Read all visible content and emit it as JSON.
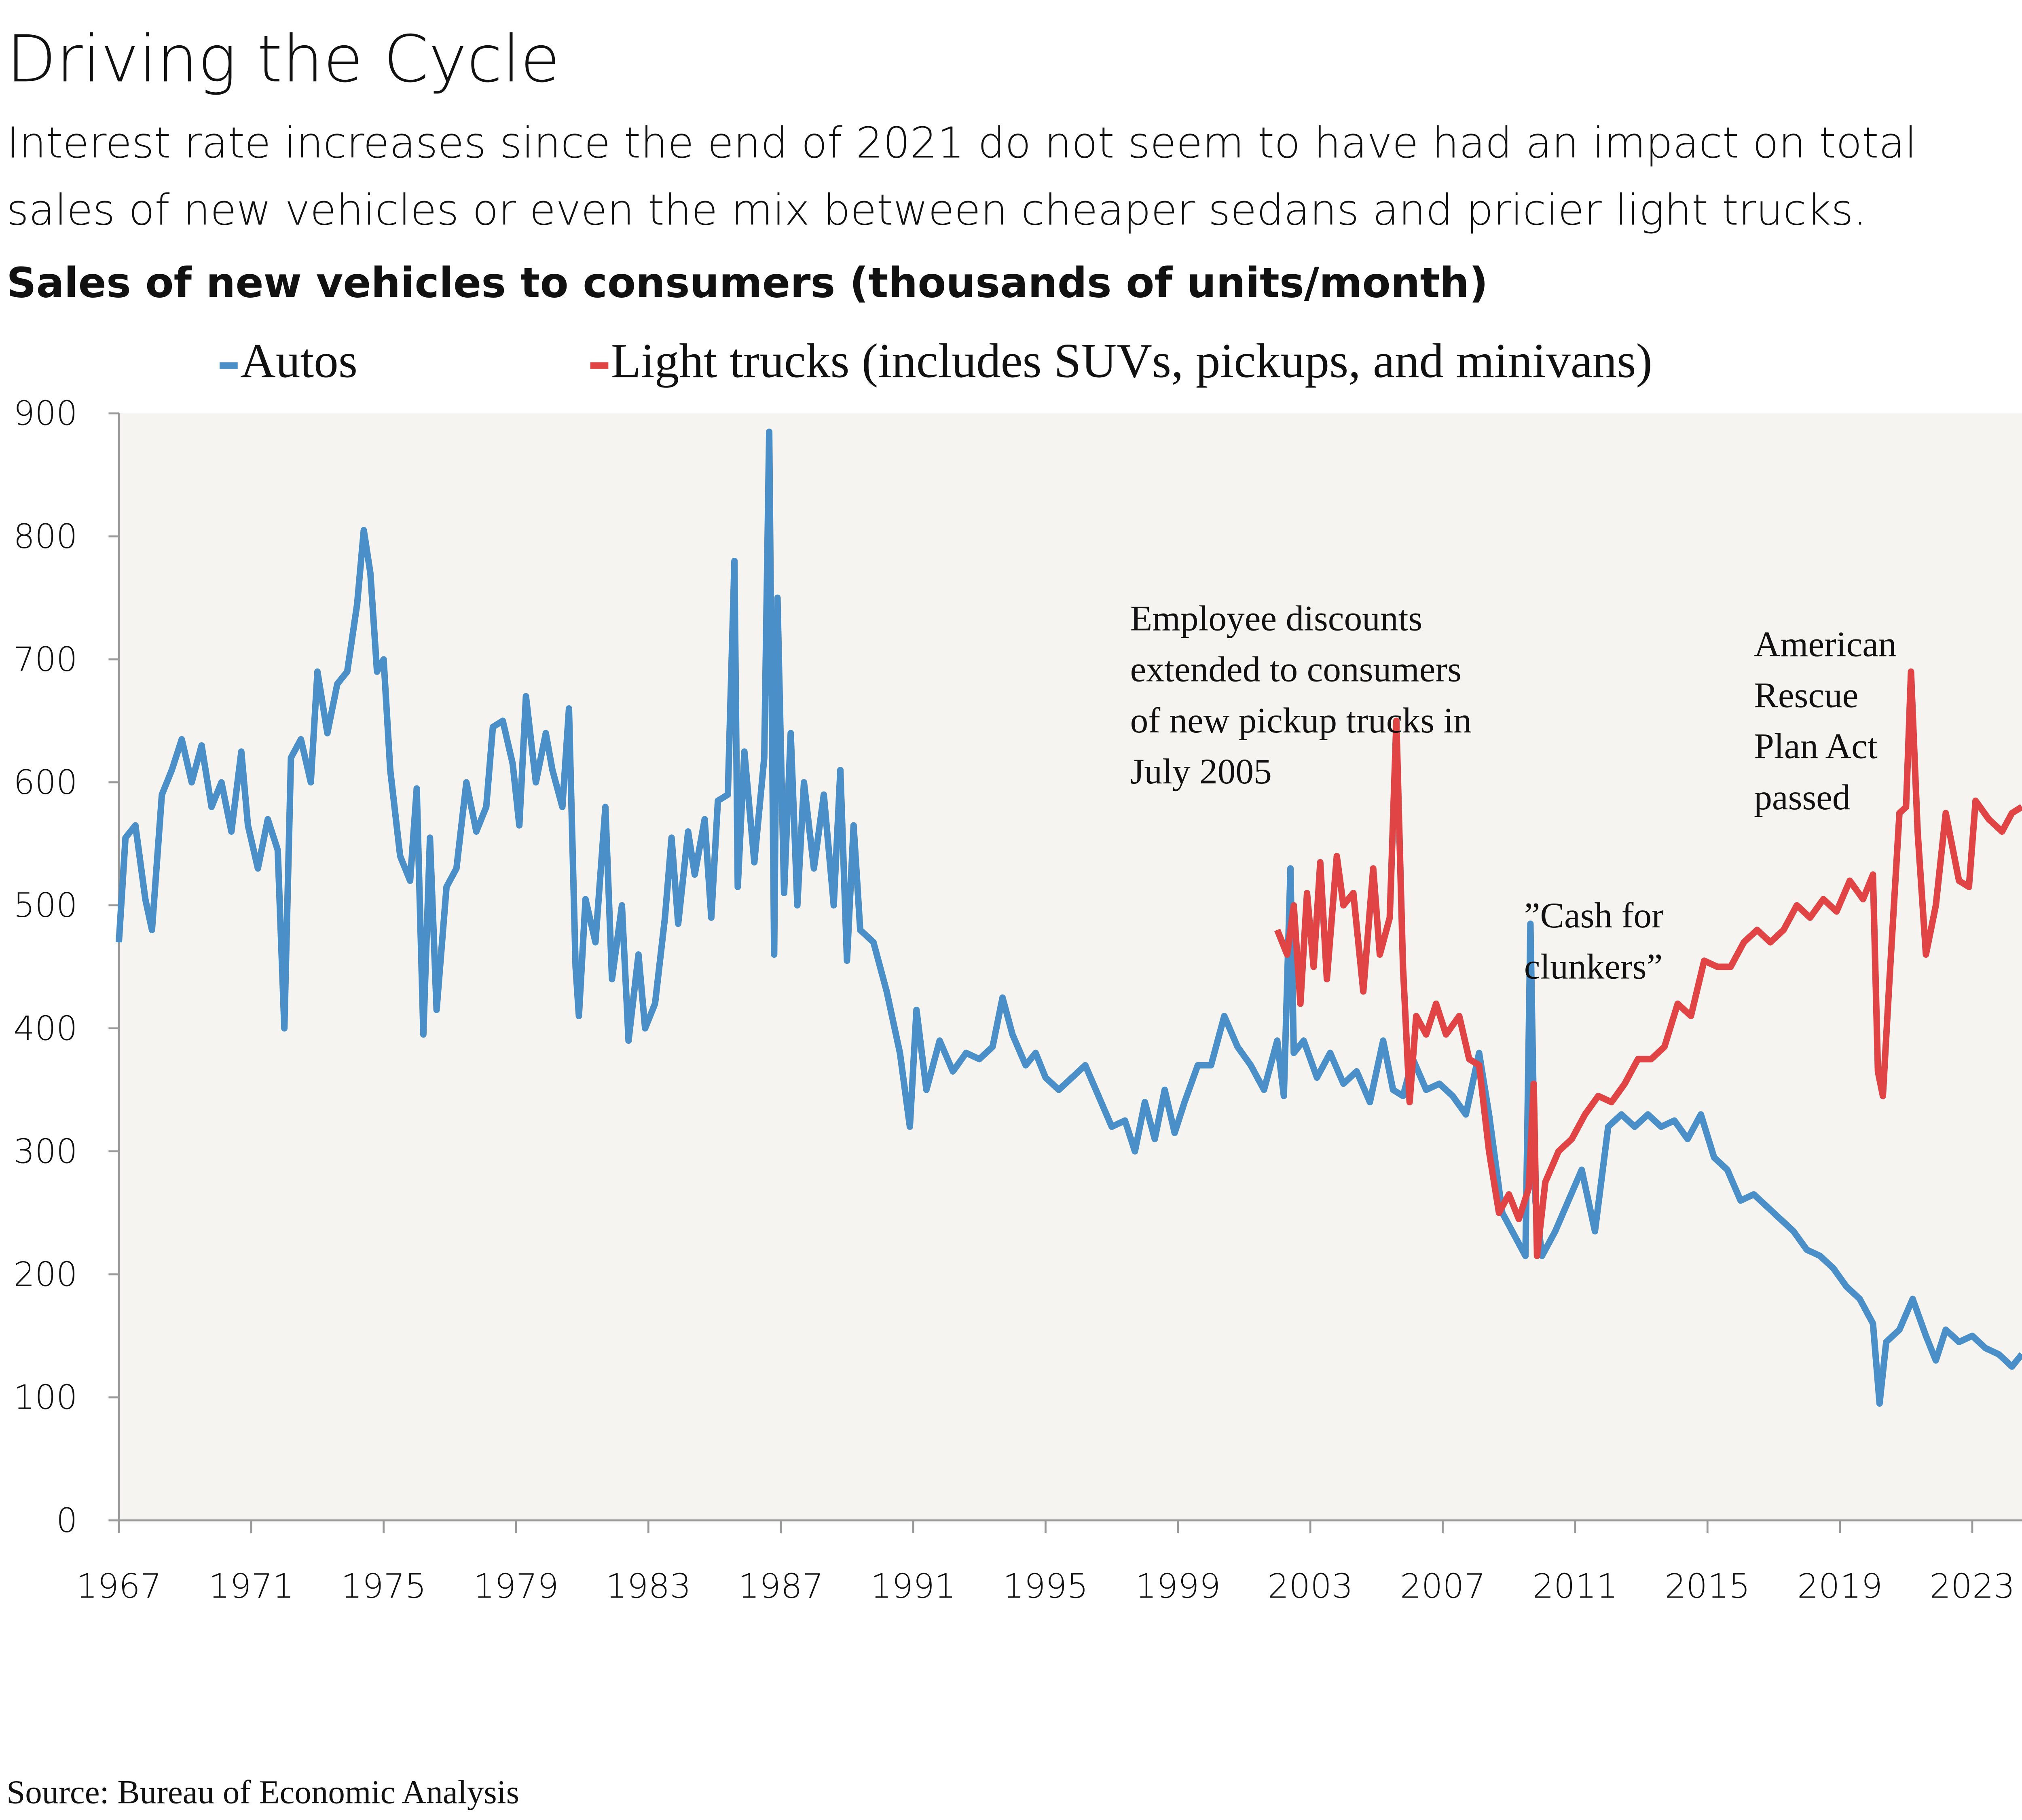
{
  "chart_data": {
    "type": "line",
    "title": "Driving the Cycle",
    "subtitle": [
      "Interest rate increases since the end of 2021 do not seem to have had an impact on total",
      "sales of new vehicles or even the mix between cheaper sedans and pricier light trucks."
    ],
    "chart_title": "Sales of new vehicles to consumers (thousands of units/month)",
    "source": "Source: Bureau of Economic Analysis",
    "xlim": [
      1967,
      2024.6
    ],
    "xticks": [
      1967,
      1971,
      1975,
      1979,
      1983,
      1987,
      1991,
      1995,
      1999,
      2003,
      2007,
      2011,
      2015,
      2019,
      2023
    ],
    "ylim": [
      0,
      900
    ],
    "yticks": [
      0,
      100,
      200,
      300,
      400,
      500,
      600,
      700,
      800,
      900
    ],
    "annotations": [
      [
        "Employee discounts",
        "extended to consumers",
        "of new pickup trucks in",
        "July 2005"
      ],
      [
        "”Cash for",
        "clunkers”"
      ],
      [
        "American",
        "Rescue",
        "Plan Act",
        "passed"
      ]
    ],
    "series": [
      {
        "name": "Autos",
        "color": "#4a8fc8",
        "x": [
          1967.0,
          1967.2,
          1967.5,
          1967.8,
          1968.0,
          1968.3,
          1968.6,
          1968.9,
          1969.2,
          1969.5,
          1969.8,
          1970.1,
          1970.4,
          1970.7,
          1970.9,
          1971.2,
          1971.5,
          1971.8,
          1972.0,
          1972.2,
          1972.5,
          1972.8,
          1973.0,
          1973.3,
          1973.6,
          1973.9,
          1974.2,
          1974.4,
          1974.6,
          1974.8,
          1975.0,
          1975.2,
          1975.5,
          1975.8,
          1976.0,
          1976.2,
          1976.4,
          1976.6,
          1976.9,
          1977.2,
          1977.5,
          1977.8,
          1978.1,
          1978.3,
          1978.6,
          1978.9,
          1979.1,
          1979.3,
          1979.6,
          1979.9,
          1980.1,
          1980.4,
          1980.6,
          1980.8,
          1980.9,
          1981.1,
          1981.4,
          1981.7,
          1981.9,
          1982.2,
          1982.4,
          1982.7,
          1982.9,
          1983.2,
          1983.5,
          1983.7,
          1983.9,
          1984.2,
          1984.4,
          1984.7,
          1984.9,
          1985.1,
          1985.4,
          1985.6,
          1985.7,
          1985.9,
          1986.2,
          1986.5,
          1986.65,
          1986.8,
          1986.9,
          1987.1,
          1987.3,
          1987.5,
          1987.7,
          1988.0,
          1988.3,
          1988.6,
          1988.8,
          1989.0,
          1989.2,
          1989.4,
          1989.8,
          1990.2,
          1990.6,
          1990.9,
          1991.1,
          1991.4,
          1991.8,
          1992.2,
          1992.6,
          1993.0,
          1993.4,
          1993.7,
          1994.0,
          1994.4,
          1994.7,
          1995.0,
          1995.4,
          1995.8,
          1996.2,
          1996.6,
          1997.0,
          1997.4,
          1997.7,
          1998.0,
          1998.3,
          1998.6,
          1998.9,
          1999.2,
          1999.6,
          2000.0,
          2000.4,
          2000.8,
          2001.2,
          2001.6,
          2002.0,
          2002.2,
          2002.4,
          2002.5,
          2002.8,
          2003.2,
          2003.6,
          2004.0,
          2004.4,
          2004.8,
          2005.2,
          2005.5,
          2005.8,
          2006.1,
          2006.5,
          2006.9,
          2007.3,
          2007.7,
          2008.1,
          2008.4,
          2008.8,
          2009.2,
          2009.5,
          2009.65,
          2009.8,
          2010.0,
          2010.4,
          2010.8,
          2011.2,
          2011.6,
          2012.0,
          2012.4,
          2012.8,
          2013.2,
          2013.6,
          2014.0,
          2014.4,
          2014.8,
          2015.2,
          2015.6,
          2016.0,
          2016.4,
          2016.8,
          2017.2,
          2017.6,
          2018.0,
          2018.4,
          2018.8,
          2019.2,
          2019.6,
          2020.0,
          2020.2,
          2020.4,
          2020.8,
          2021.2,
          2021.6,
          2021.9,
          2022.2,
          2022.6,
          2023.0,
          2023.4,
          2023.8,
          2024.2,
          2024.5
        ],
        "values": [
          470,
          555,
          565,
          505,
          480,
          590,
          610,
          635,
          600,
          630,
          580,
          600,
          560,
          625,
          565,
          530,
          570,
          545,
          400,
          620,
          635,
          600,
          690,
          640,
          680,
          690,
          745,
          805,
          770,
          690,
          700,
          610,
          540,
          520,
          595,
          395,
          555,
          415,
          515,
          530,
          600,
          560,
          580,
          645,
          650,
          615,
          565,
          670,
          600,
          640,
          610,
          580,
          660,
          450,
          410,
          505,
          470,
          580,
          440,
          500,
          390,
          460,
          400,
          420,
          490,
          555,
          485,
          560,
          525,
          570,
          490,
          585,
          590,
          780,
          515,
          625,
          535,
          620,
          885,
          460,
          750,
          510,
          640,
          500,
          600,
          530,
          590,
          500,
          610,
          455,
          565,
          480,
          470,
          430,
          380,
          320,
          415,
          350,
          390,
          365,
          380,
          375,
          385,
          425,
          395,
          370,
          380,
          360,
          350,
          360,
          370,
          345,
          320,
          325,
          300,
          340,
          310,
          350,
          315,
          340,
          370,
          370,
          410,
          385,
          370,
          350,
          390,
          345,
          530,
          380,
          390,
          360,
          380,
          355,
          365,
          340,
          390,
          350,
          345,
          375,
          350,
          355,
          345,
          330,
          380,
          330,
          250,
          230,
          215,
          485,
          260,
          215,
          235,
          260,
          285,
          235,
          320,
          330,
          320,
          330,
          320,
          325,
          310,
          330,
          295,
          285,
          260,
          265,
          255,
          245,
          235,
          220,
          215,
          205,
          190,
          180,
          160,
          95,
          145,
          155,
          180,
          150,
          130,
          155,
          145,
          150,
          140,
          135,
          125,
          135
        ]
      },
      {
        "name": "Light trucks (includes SUVs, pickups, and minivans)",
        "color": "#e04444",
        "x": [
          2002.0,
          2002.3,
          2002.5,
          2002.7,
          2002.9,
          2003.1,
          2003.3,
          2003.5,
          2003.8,
          2004.0,
          2004.3,
          2004.6,
          2004.9,
          2005.1,
          2005.4,
          2005.6,
          2005.8,
          2006.0,
          2006.2,
          2006.5,
          2006.8,
          2007.1,
          2007.5,
          2007.8,
          2008.1,
          2008.4,
          2008.7,
          2009.0,
          2009.3,
          2009.6,
          2009.75,
          2009.85,
          2010.1,
          2010.5,
          2010.9,
          2011.3,
          2011.7,
          2012.1,
          2012.5,
          2012.9,
          2013.3,
          2013.7,
          2014.1,
          2014.5,
          2014.9,
          2015.3,
          2015.7,
          2016.1,
          2016.5,
          2016.9,
          2017.3,
          2017.7,
          2018.1,
          2018.5,
          2018.9,
          2019.3,
          2019.7,
          2020.0,
          2020.15,
          2020.3,
          2020.5,
          2020.8,
          2021.0,
          2021.15,
          2021.35,
          2021.6,
          2021.9,
          2022.2,
          2022.6,
          2022.9,
          2023.1,
          2023.5,
          2023.9,
          2024.2,
          2024.5
        ],
        "values": [
          480,
          460,
          500,
          420,
          510,
          450,
          535,
          440,
          540,
          500,
          510,
          430,
          530,
          460,
          490,
          650,
          450,
          340,
          410,
          395,
          420,
          395,
          410,
          375,
          370,
          300,
          250,
          265,
          245,
          270,
          355,
          215,
          275,
          300,
          310,
          330,
          345,
          340,
          355,
          375,
          375,
          385,
          420,
          410,
          455,
          450,
          450,
          470,
          480,
          470,
          480,
          500,
          490,
          505,
          495,
          520,
          505,
          525,
          365,
          345,
          440,
          575,
          580,
          690,
          560,
          460,
          500,
          575,
          520,
          515,
          585,
          570,
          560,
          575,
          580
        ]
      }
    ]
  }
}
